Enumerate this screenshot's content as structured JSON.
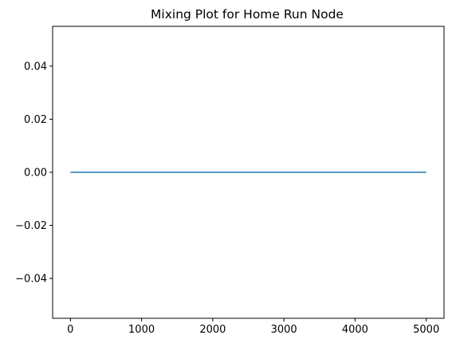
{
  "chart_data": {
    "type": "line",
    "title": "Mixing Plot for Home Run Node",
    "xlabel": "",
    "ylabel": "",
    "xlim": [
      -250,
      5250
    ],
    "ylim": [
      -0.055,
      0.055
    ],
    "x_ticks": [
      0,
      1000,
      2000,
      3000,
      4000,
      5000
    ],
    "x_tick_labels": [
      "0",
      "1000",
      "2000",
      "3000",
      "4000",
      "5000"
    ],
    "y_ticks": [
      0.04,
      0.02,
      0.0,
      -0.02,
      -0.04
    ],
    "y_tick_labels": [
      "0.04",
      "0.02",
      "0.00",
      "−0.02",
      "−0.04"
    ],
    "grid": false,
    "legend": "none",
    "series": [
      {
        "color": "#1f77b4",
        "x": [
          0,
          5000
        ],
        "y": [
          0.0,
          0.0
        ]
      }
    ]
  }
}
